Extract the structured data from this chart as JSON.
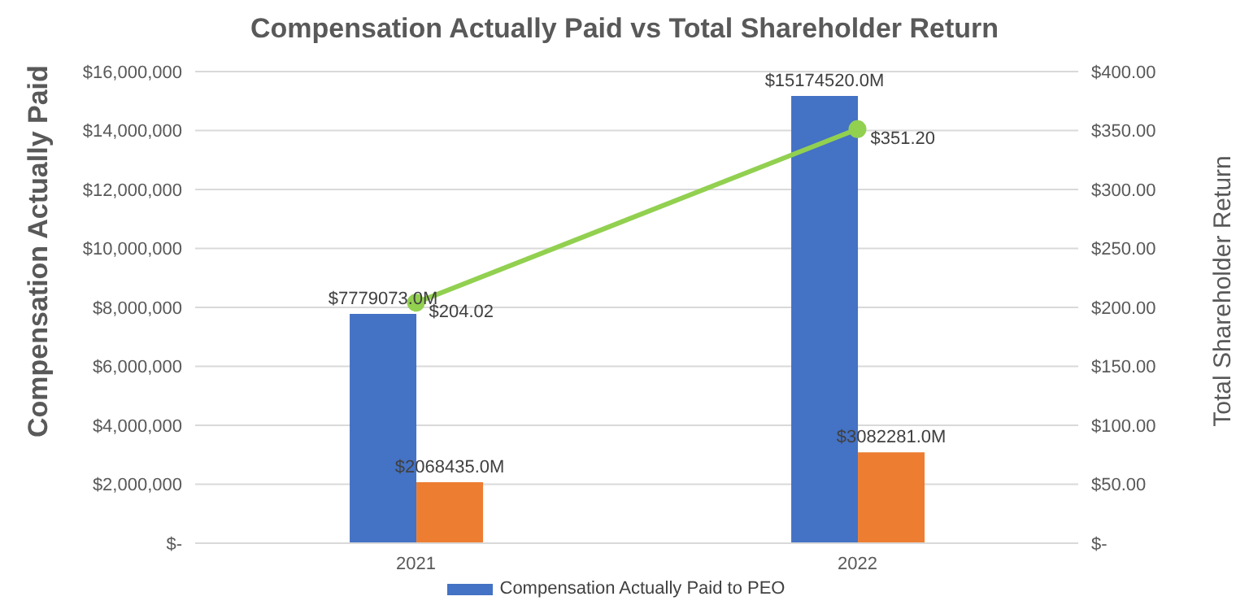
{
  "chart_data": {
    "type": "bar",
    "title": "Compensation Actually Paid vs Total Shareholder Return",
    "ylabel": "Compensation Actually Paid",
    "y2label": "Total Shareholder Return",
    "categories": [
      "2021",
      "2022"
    ],
    "series": [
      {
        "name": "Compensation Actually Paid to PEO",
        "color": "#4472c4",
        "values": [
          7779073,
          15174520
        ],
        "value_labels": [
          "$7779073.0M",
          "$15174520.0M"
        ]
      },
      {
        "color": "#ed7d31",
        "values": [
          2068435,
          3082281
        ],
        "value_labels": [
          "$2068435.0M",
          "$3082281.0M"
        ]
      },
      {
        "type": "line",
        "axis": "y2",
        "color": "#92d050",
        "values": [
          204.02,
          351.2
        ],
        "value_labels": [
          "$204.02",
          "$351.20"
        ],
        "marker": "circle"
      }
    ],
    "ylim": [
      0,
      16000000
    ],
    "yticks": [
      {
        "value": 0,
        "label": "$-"
      },
      {
        "value": 2000000,
        "label": "$2,000,000"
      },
      {
        "value": 4000000,
        "label": "$4,000,000"
      },
      {
        "value": 6000000,
        "label": "$6,000,000"
      },
      {
        "value": 8000000,
        "label": "$8,000,000"
      },
      {
        "value": 10000000,
        "label": "$10,000,000"
      },
      {
        "value": 12000000,
        "label": "$12,000,000"
      },
      {
        "value": 14000000,
        "label": "$14,000,000"
      },
      {
        "value": 16000000,
        "label": "$16,000,000"
      }
    ],
    "y2lim": [
      0,
      400
    ],
    "y2ticks": [
      {
        "value": 0,
        "label": "$-"
      },
      {
        "value": 50,
        "label": "$50.00"
      },
      {
        "value": 100,
        "label": "$100.00"
      },
      {
        "value": 150,
        "label": "$150.00"
      },
      {
        "value": 200,
        "label": "$200.00"
      },
      {
        "value": 250,
        "label": "$250.00"
      },
      {
        "value": 300,
        "label": "$300.00"
      },
      {
        "value": 350,
        "label": "$350.00"
      },
      {
        "value": 400,
        "label": "$400.00"
      }
    ],
    "grid": "y",
    "legend": "bottom"
  }
}
